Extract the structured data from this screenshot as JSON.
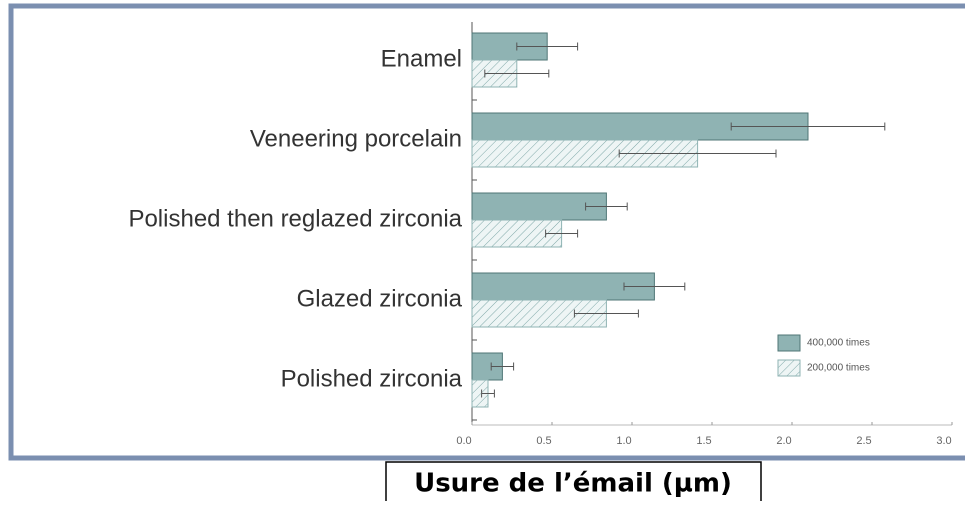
{
  "chart_data": {
    "type": "hbar",
    "categories": [
      "Enamel",
      "Veneering porcelain",
      "Polished then reglazed zirconia",
      "Glazed zirconia",
      "Polished zirconia"
    ],
    "series": [
      {
        "name": "400,000 times",
        "color": "#8fb3b3",
        "values": [
          0.47,
          2.1,
          0.84,
          1.14,
          0.19
        ],
        "errors": [
          0.19,
          0.48,
          0.13,
          0.19,
          0.07
        ]
      },
      {
        "name": "200,000 times",
        "color": "#e6f0f0",
        "values": [
          0.28,
          1.41,
          0.56,
          0.84,
          0.1
        ],
        "errors": [
          0.2,
          0.49,
          0.1,
          0.2,
          0.04
        ]
      }
    ],
    "xlim": [
      0,
      3
    ],
    "xticks": [
      {
        "value": 0,
        "label": "0.0"
      },
      0.5,
      {
        "value": 1,
        "label": "1.0"
      },
      1.5,
      {
        "value": 2,
        "label": "2.0"
      },
      2.5,
      {
        "value": 3,
        "label": "3.0"
      }
    ],
    "xlabel": "Usure de l’émail (µm)",
    "legend": "lower right"
  }
}
